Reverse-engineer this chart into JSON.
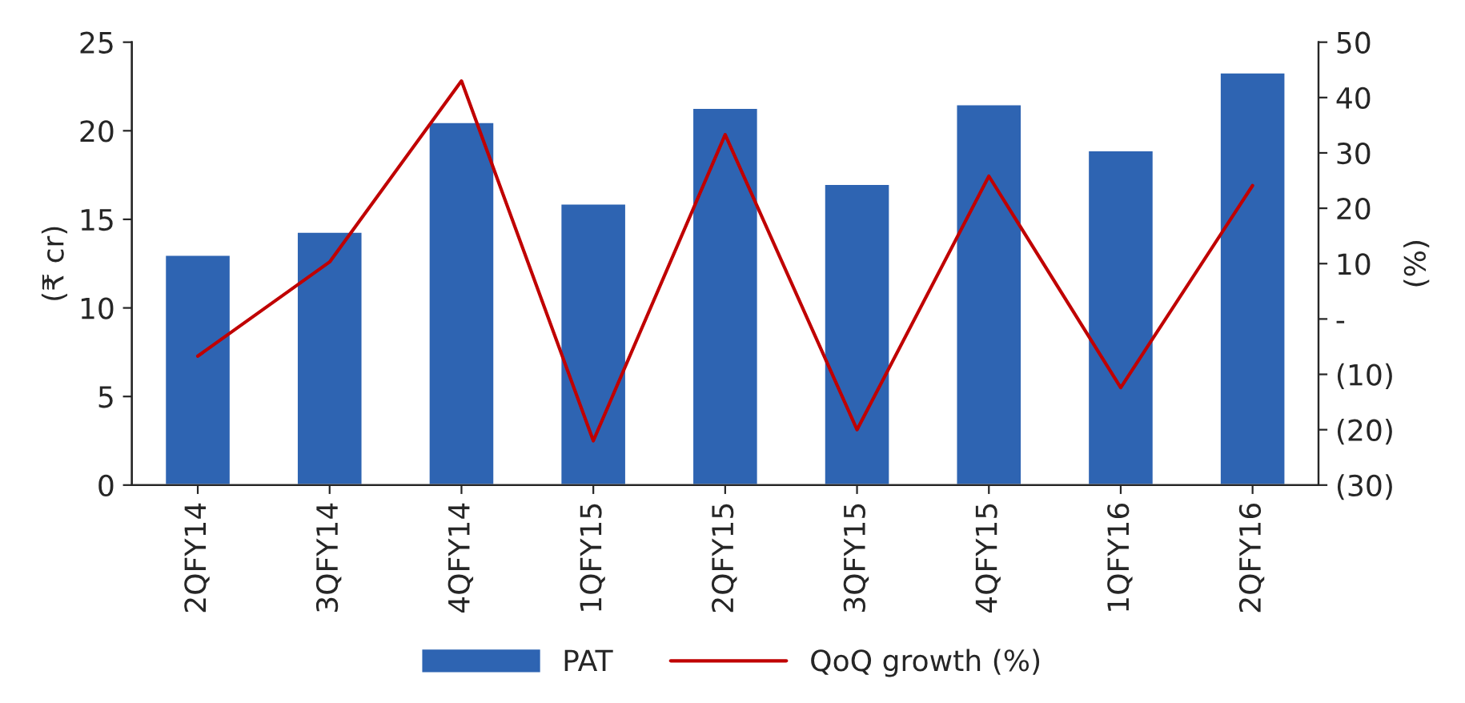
{
  "chart_data": {
    "type": "bar",
    "categories": [
      "2QFY14",
      "3QFY14",
      "4QFY14",
      "1QFY15",
      "2QFY15",
      "3QFY15",
      "4QFY15",
      "1QFY16",
      "2QFY16"
    ],
    "series": [
      {
        "name": "PAT",
        "color": "#2e64b2",
        "values": [
          13.0,
          14.3,
          20.5,
          15.9,
          21.3,
          17.0,
          21.5,
          18.9,
          23.3
        ]
      },
      {
        "name": "QoQ growth (%)",
        "type": "line",
        "axis": "y2",
        "color": "#c00000",
        "values": [
          -6.7,
          10.3,
          43.0,
          -22.0,
          33.3,
          -20.0,
          25.8,
          -12.4,
          24.1
        ]
      }
    ],
    "ylabel": "(₹ cr)",
    "y2label": "(%)",
    "ylim": [
      0,
      25
    ],
    "yticks": [
      0,
      5,
      10,
      15,
      20,
      25
    ],
    "y2lim": [
      -30,
      50
    ],
    "y2ticks": [
      {
        "value": -30,
        "label": "(30)"
      },
      {
        "value": -20,
        "label": "(20)"
      },
      {
        "value": -10,
        "label": "(10)"
      },
      {
        "value": 0,
        "label": "-"
      },
      10,
      20,
      30,
      40,
      50
    ],
    "legend": "bottom",
    "grid": false,
    "marker": "none",
    "line_style": "solid"
  }
}
